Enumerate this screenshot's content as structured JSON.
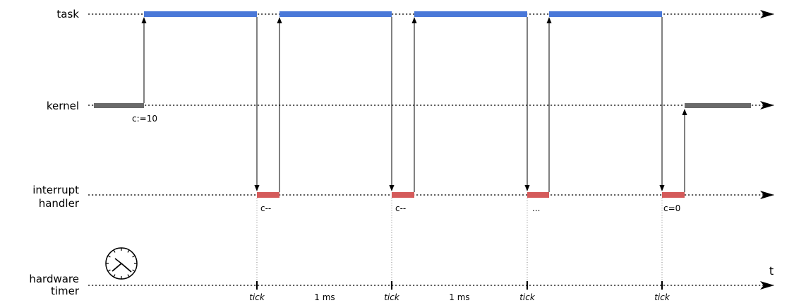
{
  "lanes": {
    "task": {
      "label": [
        "task"
      ]
    },
    "kernel": {
      "label": [
        "kernel"
      ]
    },
    "interrupt": {
      "label": [
        "interrupt",
        "handler"
      ]
    },
    "timer": {
      "label": [
        "hardware",
        "timer"
      ]
    }
  },
  "axis_variable": "t",
  "annotations": {
    "kernel_init": "c:=10",
    "irq": [
      "c--",
      "c--",
      "...",
      "c=0"
    ]
  },
  "timer": {
    "tick_label": "tick",
    "interval_label": "1 ms"
  },
  "icons": {
    "clock": "clock-icon"
  },
  "colors": {
    "task": "#4a78d8",
    "kernel": "#6a6a6a",
    "interrupt": "#d45a5a"
  }
}
